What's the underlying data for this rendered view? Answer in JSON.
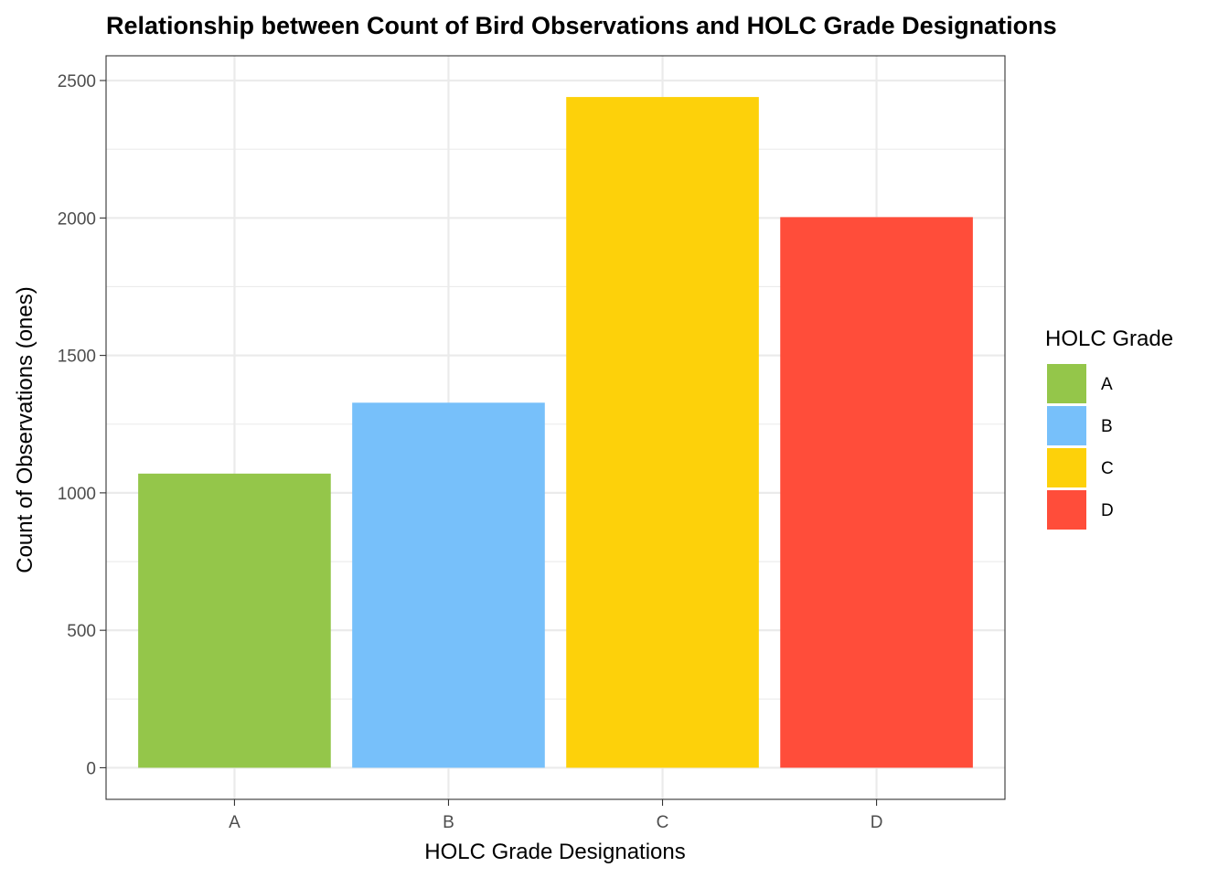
{
  "chart_data": {
    "type": "bar",
    "title": "Relationship between Count of Bird Observations and HOLC Grade Designations",
    "xlabel": "HOLC Grade Designations",
    "ylabel": "Count of Observations (ones)",
    "categories": [
      "A",
      "B",
      "C",
      "D"
    ],
    "values": [
      1070,
      1328,
      2440,
      2003
    ],
    "colors": [
      "#94C64A",
      "#77C0FA",
      "#FDD10A",
      "#FF4D3A"
    ],
    "ylim": [
      -115,
      2590
    ],
    "yticks": [
      0,
      500,
      1000,
      1500,
      2000,
      2500
    ],
    "grid": true,
    "legend": {
      "title": "HOLC Grade",
      "position": "right",
      "entries": [
        "A",
        "B",
        "C",
        "D"
      ]
    }
  }
}
